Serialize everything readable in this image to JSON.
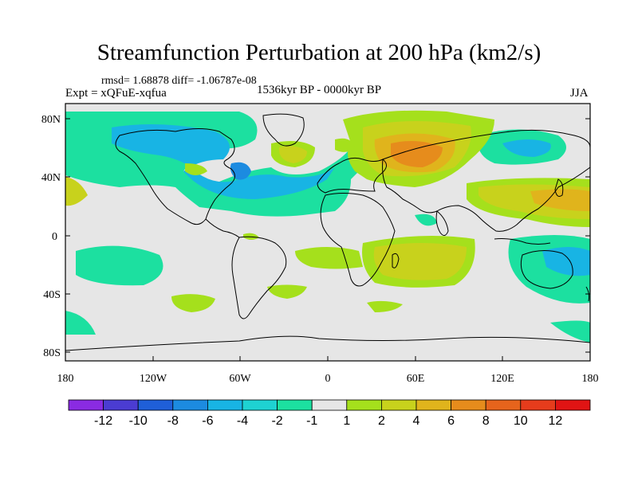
{
  "title": "Streamfunction Perturbation at 200 hPa (km2/s)",
  "stats": "rmsd= 1.68878 diff= -1.06787e-08",
  "expt": "Expt = xQFuE-xqfua",
  "period": "1536kyr BP - 0000kyr BP",
  "season": "JJA",
  "lat_ticks": [
    "80N",
    "40N",
    "0",
    "40S",
    "80S"
  ],
  "lon_ticks": [
    "180",
    "120W",
    "60W",
    "0",
    "60E",
    "120E",
    "180"
  ],
  "colorbar": {
    "labels": [
      "-12",
      "-10",
      "-8",
      "-6",
      "-4",
      "-2",
      "-1",
      "1",
      "2",
      "4",
      "6",
      "8",
      "10",
      "12"
    ],
    "colors": [
      "#8a2be2",
      "#4b3cd2",
      "#1f5fd8",
      "#1c8be0",
      "#18b4e4",
      "#1ed2d2",
      "#1ce0a0",
      "#e6e6e6",
      "#a5e01c",
      "#c8d21c",
      "#e0b41c",
      "#e68c1c",
      "#e6641c",
      "#e63c1c",
      "#e01414"
    ]
  },
  "colors": {
    "land_outline": "#000000",
    "background_field": "#e6e6e6"
  }
}
